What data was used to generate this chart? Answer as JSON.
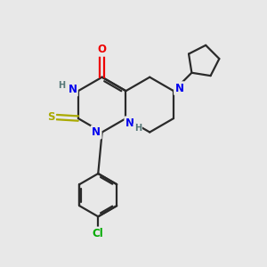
{
  "bg_color": "#e8e8e8",
  "bond_color": "#2a2a2a",
  "atom_colors": {
    "N": "#0000ee",
    "O": "#ee0000",
    "S": "#aaaa00",
    "Cl": "#00aa00",
    "H_label": "#557777",
    "C": "#2a2a2a"
  },
  "line_width": 1.6,
  "font_size_atom": 8.5,
  "font_size_small": 7.0
}
